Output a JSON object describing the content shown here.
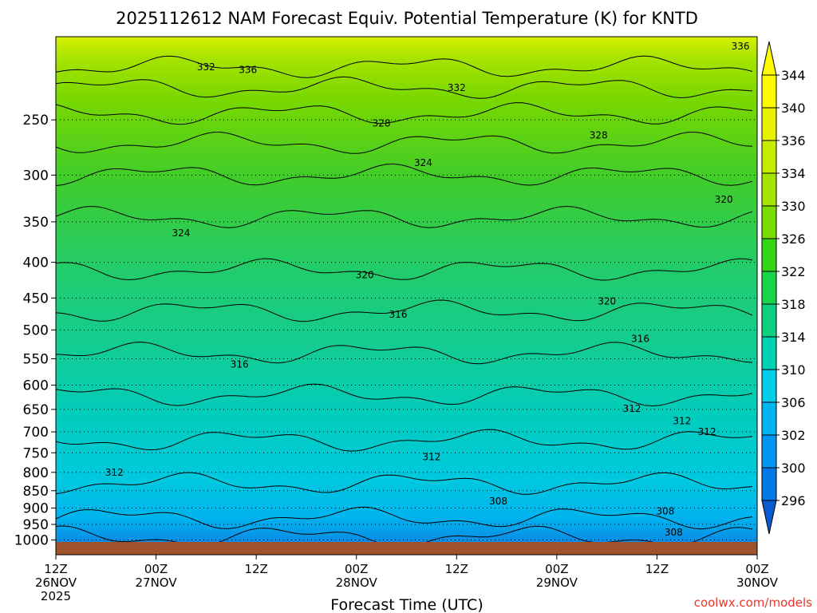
{
  "chart_data": {
    "type": "heatmap",
    "title": "2025112612 NAM Forecast Equiv. Potential Temperature (K) for KNTD",
    "xlabel": "Forecast Time (UTC)",
    "ylabel": "",
    "x_ticks": [
      {
        "hour": 12,
        "label": "12Z",
        "sub": "26NOV",
        "sub2": "2025"
      },
      {
        "hour": 24,
        "label": "00Z",
        "sub": "27NOV",
        "sub2": ""
      },
      {
        "hour": 36,
        "label": "12Z",
        "sub": "",
        "sub2": ""
      },
      {
        "hour": 48,
        "label": "00Z",
        "sub": "28NOV",
        "sub2": ""
      },
      {
        "hour": 60,
        "label": "12Z",
        "sub": "",
        "sub2": ""
      },
      {
        "hour": 72,
        "label": "00Z",
        "sub": "29NOV",
        "sub2": ""
      },
      {
        "hour": 84,
        "label": "12Z",
        "sub": "",
        "sub2": ""
      },
      {
        "hour": 96,
        "label": "00Z",
        "sub": "30NOV",
        "sub2": ""
      }
    ],
    "y_scale": "log-pressure",
    "y_range_hpa": [
      1050,
      190
    ],
    "y_ticks": [
      250,
      300,
      350,
      400,
      450,
      500,
      550,
      600,
      650,
      700,
      750,
      800,
      850,
      900,
      950,
      1000
    ],
    "colorbar_labels": [
      344,
      340,
      336,
      334,
      330,
      326,
      322,
      318,
      314,
      310,
      306,
      302,
      300,
      296
    ],
    "colorbar_colors": [
      "#fffc00",
      "#e8f200",
      "#c8ec00",
      "#a4e400",
      "#7adc00",
      "#34d418",
      "#18d448",
      "#10d080",
      "#00d2b4",
      "#00cde6",
      "#00b4f0",
      "#0096f0",
      "#0078e6",
      "#0a5ad2"
    ],
    "contour_labels": [
      {
        "value": 336,
        "hour": 94,
        "p": 196
      },
      {
        "value": 332,
        "hour": 30,
        "p": 210
      },
      {
        "value": 336,
        "hour": 35,
        "p": 212
      },
      {
        "value": 332,
        "hour": 60,
        "p": 225
      },
      {
        "value": 328,
        "hour": 51,
        "p": 253
      },
      {
        "value": 328,
        "hour": 77,
        "p": 263
      },
      {
        "value": 324,
        "hour": 56,
        "p": 288
      },
      {
        "value": 324,
        "hour": 27,
        "p": 363
      },
      {
        "value": 320,
        "hour": 92,
        "p": 325
      },
      {
        "value": 320,
        "hour": 49,
        "p": 417
      },
      {
        "value": 320,
        "hour": 78,
        "p": 455
      },
      {
        "value": 316,
        "hour": 53,
        "p": 475
      },
      {
        "value": 316,
        "hour": 82,
        "p": 515
      },
      {
        "value": 316,
        "hour": 34,
        "p": 560
      },
      {
        "value": 312,
        "hour": 81,
        "p": 648
      },
      {
        "value": 312,
        "hour": 87,
        "p": 675
      },
      {
        "value": 312,
        "hour": 90,
        "p": 700
      },
      {
        "value": 312,
        "hour": 57,
        "p": 760
      },
      {
        "value": 312,
        "hour": 19,
        "p": 800
      },
      {
        "value": 308,
        "hour": 65,
        "p": 880
      },
      {
        "value": 308,
        "hour": 85,
        "p": 910
      },
      {
        "value": 308,
        "hour": 86,
        "p": 975
      }
    ],
    "grid": true,
    "legend": "right colorbar"
  },
  "watermark": "coolwx.com/models"
}
